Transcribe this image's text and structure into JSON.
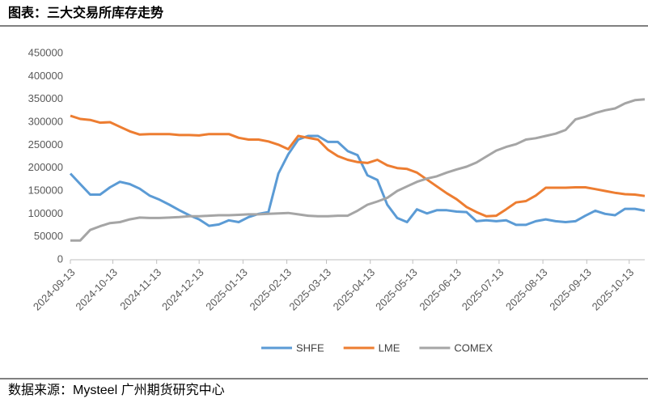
{
  "chart_data": {
    "type": "line",
    "title": "图表：三大交易所库存走势",
    "source": "数据来源：Mysteel  广州期货研究中心",
    "x": [
      "2024-09-13",
      "2024-09-20",
      "2024-09-27",
      "2024-10-04",
      "2024-10-11",
      "2024-10-18",
      "2024-10-25",
      "2024-11-01",
      "2024-11-08",
      "2024-11-15",
      "2024-11-22",
      "2024-11-29",
      "2024-12-06",
      "2024-12-13",
      "2024-12-20",
      "2024-12-27",
      "2025-01-03",
      "2025-01-10",
      "2025-01-17",
      "2025-01-24",
      "2025-01-31",
      "2025-02-07",
      "2025-02-14",
      "2025-02-21",
      "2025-02-28",
      "2025-03-07",
      "2025-03-14",
      "2025-03-21",
      "2025-03-28",
      "2025-04-04",
      "2025-04-11",
      "2025-04-18",
      "2025-04-25",
      "2025-05-02",
      "2025-05-09",
      "2025-05-16",
      "2025-05-23",
      "2025-05-30",
      "2025-06-06",
      "2025-06-13",
      "2025-06-20",
      "2025-06-27",
      "2025-07-04",
      "2025-07-11",
      "2025-07-18",
      "2025-07-25",
      "2025-08-01",
      "2025-08-08",
      "2025-08-15",
      "2025-08-22",
      "2025-08-29",
      "2025-09-05",
      "2025-09-12",
      "2025-09-19",
      "2025-09-26",
      "2025-10-03",
      "2025-10-10",
      "2025-10-17",
      "2025-10-24"
    ],
    "series": [
      {
        "name": "SHFE",
        "color": "#5b9bd5",
        "values": [
          188000,
          165000,
          142000,
          142000,
          158000,
          170000,
          165000,
          155000,
          140000,
          131000,
          120000,
          108000,
          97000,
          88000,
          74000,
          77000,
          86000,
          82000,
          93000,
          100000,
          104000,
          188000,
          230000,
          262000,
          270000,
          270000,
          257000,
          257000,
          237000,
          228000,
          184000,
          174000,
          120000,
          91000,
          82000,
          110000,
          101000,
          108000,
          108000,
          105000,
          104000,
          84000,
          86000,
          84000,
          86000,
          76000,
          76000,
          84000,
          88000,
          84000,
          82000,
          84000,
          96000,
          107000,
          100000,
          97000,
          111000,
          111000,
          107000
        ]
      },
      {
        "name": "LME",
        "color": "#ed7d31",
        "values": [
          314000,
          307000,
          305000,
          299000,
          300000,
          290000,
          280000,
          273000,
          274000,
          274000,
          274000,
          272000,
          272000,
          271000,
          274000,
          274000,
          274000,
          266000,
          262000,
          262000,
          258000,
          251000,
          241000,
          270000,
          266000,
          262000,
          240000,
          226000,
          218000,
          213000,
          211000,
          218000,
          206000,
          200000,
          198000,
          190000,
          175000,
          160000,
          145000,
          132000,
          115000,
          104000,
          95000,
          96000,
          110000,
          125000,
          128000,
          140000,
          157000,
          157000,
          157000,
          158000,
          158000,
          154000,
          150000,
          146000,
          143000,
          142000,
          139000
        ]
      },
      {
        "name": "COMEX",
        "color": "#a5a5a5",
        "values": [
          42000,
          42000,
          65000,
          73000,
          80000,
          82000,
          88000,
          92000,
          91000,
          91000,
          92000,
          93000,
          95000,
          95000,
          96000,
          97000,
          97000,
          98000,
          99000,
          99000,
          100000,
          101000,
          102000,
          99000,
          96000,
          95000,
          95000,
          96000,
          96000,
          107000,
          120000,
          127000,
          135000,
          150000,
          160000,
          170000,
          177000,
          182000,
          190000,
          197000,
          203000,
          212000,
          225000,
          238000,
          246000,
          252000,
          262000,
          265000,
          270000,
          275000,
          283000,
          306000,
          312000,
          320000,
          326000,
          330000,
          341000,
          348000,
          350000
        ]
      }
    ],
    "xlim": [
      "2024-09-13",
      "2025-10-24"
    ],
    "xticks": [
      "2024-09-13",
      "2024-10-13",
      "2024-11-13",
      "2024-12-13",
      "2025-01-13",
      "2025-02-13",
      "2025-03-13",
      "2025-04-13",
      "2025-05-13",
      "2025-06-13",
      "2025-07-13",
      "2025-08-13",
      "2025-09-13",
      "2025-10-13"
    ],
    "ylim": [
      0,
      450000
    ],
    "yticks": [
      0,
      50000,
      100000,
      150000,
      200000,
      250000,
      300000,
      350000,
      400000,
      450000
    ],
    "grid": false,
    "legend": "bottom"
  }
}
